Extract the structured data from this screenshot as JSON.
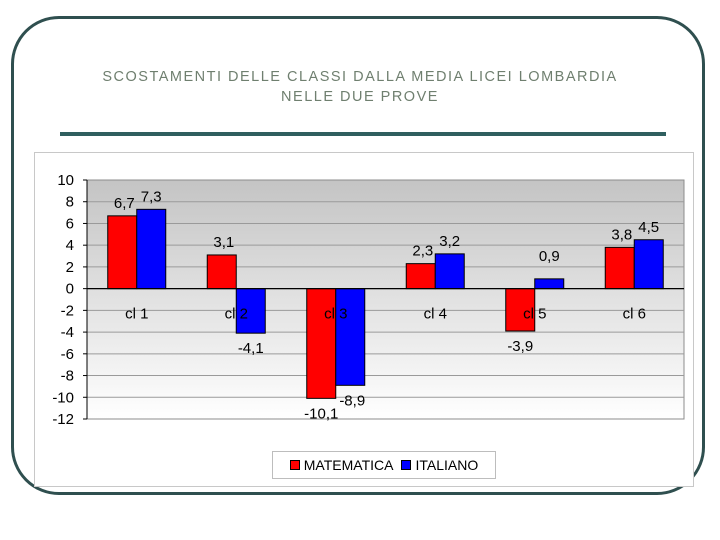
{
  "slide": {
    "title_line1": "SCOSTAMENTI DELLE CLASSI DALLA MEDIA LICEI LOMBARDIA",
    "title_line2": "NELLE DUE PROVE"
  },
  "colors": {
    "matematica": "#ff0000",
    "italiano": "#0000ff",
    "plot_bg_top": "#c4c4c4",
    "plot_bg_bottom": "#ffffff"
  },
  "chart_data": {
    "type": "bar",
    "categories": [
      "cl 1",
      "cl 2",
      "cl 3",
      "cl 4",
      "cl 5",
      "cl 6"
    ],
    "series": [
      {
        "name": "MATEMATICA",
        "values": [
          6.7,
          3.1,
          -10.1,
          2.3,
          -3.9,
          3.8
        ],
        "labels": [
          "6,7",
          "3,1",
          "-10,1",
          "2,3",
          "-3,9",
          "3,8"
        ]
      },
      {
        "name": "ITALIANO",
        "values": [
          7.3,
          -4.1,
          -8.9,
          3.2,
          0.9,
          4.5
        ],
        "labels": [
          "7,3",
          "-4,1",
          "-8,9",
          "3,2",
          "0,9",
          "4,5"
        ]
      }
    ],
    "yticks": [
      10,
      8,
      6,
      4,
      2,
      0,
      -2,
      -4,
      -6,
      -8,
      -10,
      -12
    ],
    "ylim": [
      -12,
      10
    ],
    "grid": true,
    "legend_position": "bottom",
    "title": "",
    "xlabel": "",
    "ylabel": ""
  }
}
